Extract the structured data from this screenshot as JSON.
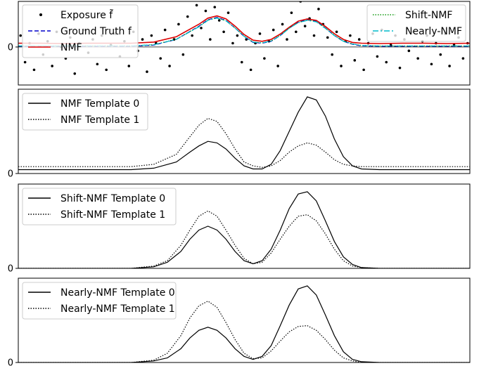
{
  "chart_data": [
    {
      "type": "line",
      "panel": "top",
      "x": [
        0,
        1000
      ],
      "xlim": [
        0,
        1000
      ],
      "ylim": [
        -1.0,
        1.2
      ],
      "yticks": [
        0
      ],
      "ytick_labels": [
        "0"
      ],
      "zero_line": true,
      "legend_left": [
        "Exposure f̃",
        "Ground Truth f",
        "NMF"
      ],
      "legend_right": [
        "Shift-NMF",
        "Nearly-NMF"
      ],
      "series": [
        {
          "name": "Exposure f̃",
          "style": "scatter",
          "color": "#000000",
          "x": [
            5,
            15,
            25,
            35,
            45,
            55,
            65,
            75,
            85,
            95,
            105,
            115,
            125,
            135,
            145,
            155,
            165,
            175,
            185,
            195,
            205,
            215,
            225,
            235,
            245,
            255,
            265,
            275,
            285,
            295,
            305,
            315,
            325,
            335,
            345,
            355,
            365,
            375,
            385,
            395,
            405,
            415,
            425,
            435,
            445,
            455,
            465,
            475,
            485,
            495,
            505,
            515,
            525,
            535,
            545,
            555,
            565,
            575,
            585,
            595,
            605,
            615,
            625,
            635,
            645,
            655,
            665,
            675,
            685,
            695,
            705,
            715,
            725,
            735,
            745,
            755,
            765,
            775,
            785,
            795,
            805,
            815,
            825,
            835,
            845,
            855,
            865,
            875,
            885,
            895,
            905,
            915,
            925,
            935,
            945,
            955,
            965,
            975,
            985,
            995
          ],
          "y": [
            0.3,
            -0.4,
            0.1,
            -0.6,
            0.35,
            -0.2,
            0.15,
            -0.5,
            0.4,
            0.0,
            -0.3,
            0.25,
            -0.7,
            0.1,
            0.45,
            -0.15,
            0.2,
            -0.45,
            0.3,
            -0.6,
            0.05,
            0.35,
            -0.25,
            0.15,
            -0.5,
            0.4,
            -0.1,
            0.2,
            -0.65,
            0.3,
            0.1,
            -0.3,
            0.45,
            -0.5,
            0.2,
            0.6,
            -0.2,
            0.8,
            0.3,
            1.1,
            0.5,
            0.95,
            0.2,
            1.05,
            0.7,
            0.4,
            0.9,
            0.1,
            0.3,
            -0.4,
            0.2,
            -0.6,
            0.1,
            0.35,
            -0.3,
            0.15,
            0.45,
            -0.5,
            0.6,
            0.2,
            0.9,
            0.4,
            1.2,
            0.55,
            0.75,
            0.3,
            1.0,
            0.6,
            0.25,
            -0.2,
            0.4,
            -0.5,
            0.15,
            0.3,
            -0.35,
            0.2,
            -0.6,
            0.1,
            0.35,
            -0.25,
            0.45,
            -0.4,
            0.05,
            0.3,
            -0.55,
            0.2,
            -0.1,
            0.4,
            -0.3,
            0.15,
            0.3,
            -0.45,
            0.1,
            -0.2,
            0.35,
            -0.5,
            0.05,
            0.25,
            -0.3,
            0.1
          ]
        },
        {
          "name": "Ground Truth f",
          "style": "dashed",
          "color": "#0000cc",
          "x": [
            0,
            50,
            100,
            150,
            200,
            250,
            300,
            350,
            400,
            420,
            440,
            460,
            480,
            500,
            520,
            540,
            560,
            580,
            600,
            620,
            640,
            660,
            680,
            700,
            720,
            740,
            760,
            800,
            850,
            900,
            950,
            1000
          ],
          "y": [
            0.02,
            0.02,
            0.02,
            0.02,
            0.02,
            0.02,
            0.05,
            0.2,
            0.55,
            0.72,
            0.78,
            0.7,
            0.5,
            0.28,
            0.12,
            0.1,
            0.15,
            0.3,
            0.5,
            0.65,
            0.72,
            0.68,
            0.5,
            0.3,
            0.15,
            0.07,
            0.03,
            0.02,
            0.02,
            0.02,
            0.02,
            0.02
          ]
        },
        {
          "name": "NMF",
          "style": "solid",
          "color": "#dd0000",
          "x": [
            0,
            50,
            100,
            150,
            200,
            250,
            300,
            350,
            400,
            420,
            440,
            460,
            480,
            500,
            520,
            540,
            560,
            580,
            600,
            620,
            640,
            660,
            680,
            700,
            720,
            740,
            760,
            800,
            850,
            900,
            950,
            1000
          ],
          "y": [
            0.1,
            0.1,
            0.09,
            0.1,
            0.1,
            0.1,
            0.13,
            0.27,
            0.6,
            0.76,
            0.82,
            0.74,
            0.55,
            0.33,
            0.18,
            0.15,
            0.2,
            0.34,
            0.52,
            0.68,
            0.74,
            0.7,
            0.54,
            0.35,
            0.2,
            0.12,
            0.1,
            0.09,
            0.1,
            0.1,
            0.09,
            0.1
          ]
        },
        {
          "name": "Shift-NMF",
          "style": "dotted",
          "color": "#119911",
          "x": [
            0,
            50,
            100,
            150,
            200,
            250,
            300,
            350,
            400,
            420,
            440,
            460,
            480,
            500,
            520,
            540,
            560,
            580,
            600,
            620,
            640,
            660,
            680,
            700,
            720,
            740,
            760,
            800,
            850,
            900,
            950,
            1000
          ],
          "y": [
            0.03,
            0.03,
            0.03,
            0.03,
            0.03,
            0.03,
            0.06,
            0.21,
            0.54,
            0.71,
            0.77,
            0.69,
            0.5,
            0.29,
            0.13,
            0.11,
            0.16,
            0.31,
            0.5,
            0.64,
            0.71,
            0.67,
            0.5,
            0.31,
            0.16,
            0.08,
            0.04,
            0.03,
            0.03,
            0.03,
            0.03,
            0.03
          ]
        },
        {
          "name": "Nearly-NMF",
          "style": "dashdot",
          "color": "#00bbcc",
          "x": [
            0,
            50,
            100,
            150,
            200,
            250,
            300,
            350,
            400,
            420,
            440,
            460,
            480,
            500,
            520,
            540,
            560,
            580,
            600,
            620,
            640,
            660,
            680,
            700,
            720,
            740,
            760,
            800,
            850,
            900,
            950,
            1000
          ],
          "y": [
            0.03,
            0.03,
            0.03,
            0.03,
            0.03,
            0.03,
            0.06,
            0.2,
            0.53,
            0.7,
            0.76,
            0.69,
            0.5,
            0.28,
            0.13,
            0.11,
            0.16,
            0.3,
            0.49,
            0.64,
            0.7,
            0.66,
            0.49,
            0.3,
            0.15,
            0.08,
            0.04,
            0.03,
            0.03,
            0.03,
            0.03,
            0.03
          ]
        }
      ]
    },
    {
      "type": "line",
      "panel": "nmf-templates",
      "xlim": [
        0,
        1000
      ],
      "ylim": [
        0,
        1.1
      ],
      "yticks": [
        0
      ],
      "ytick_labels": [
        "0"
      ],
      "legend": [
        "NMF Template 0",
        "NMF Template 1"
      ],
      "series": [
        {
          "name": "NMF Template 0",
          "style": "solid",
          "color": "#000000",
          "x": [
            0,
            50,
            100,
            150,
            200,
            250,
            300,
            350,
            380,
            400,
            420,
            440,
            460,
            480,
            500,
            520,
            540,
            560,
            580,
            600,
            620,
            640,
            660,
            680,
            700,
            720,
            740,
            760,
            800,
            850,
            900,
            950,
            1000
          ],
          "y": [
            0.05,
            0.05,
            0.05,
            0.05,
            0.05,
            0.05,
            0.07,
            0.15,
            0.28,
            0.36,
            0.42,
            0.4,
            0.32,
            0.2,
            0.1,
            0.06,
            0.06,
            0.12,
            0.3,
            0.55,
            0.8,
            1.0,
            0.96,
            0.75,
            0.45,
            0.22,
            0.1,
            0.06,
            0.05,
            0.05,
            0.05,
            0.05,
            0.05
          ]
        },
        {
          "name": "NMF Template 1",
          "style": "dotted",
          "color": "#000000",
          "x": [
            0,
            50,
            100,
            150,
            200,
            250,
            300,
            350,
            380,
            400,
            420,
            440,
            460,
            480,
            500,
            520,
            540,
            560,
            580,
            600,
            620,
            640,
            660,
            680,
            700,
            720,
            740,
            760,
            800,
            850,
            900,
            950,
            1000
          ],
          "y": [
            0.09,
            0.09,
            0.09,
            0.09,
            0.09,
            0.09,
            0.12,
            0.25,
            0.48,
            0.63,
            0.72,
            0.68,
            0.52,
            0.32,
            0.15,
            0.1,
            0.08,
            0.1,
            0.17,
            0.28,
            0.36,
            0.4,
            0.37,
            0.28,
            0.18,
            0.12,
            0.1,
            0.09,
            0.09,
            0.09,
            0.09,
            0.09,
            0.09
          ]
        }
      ]
    },
    {
      "type": "line",
      "panel": "shift-nmf-templates",
      "xlim": [
        0,
        1000
      ],
      "ylim": [
        0,
        1.1
      ],
      "yticks": [
        0
      ],
      "ytick_labels": [
        "0"
      ],
      "legend": [
        "Shift-NMF Template 0",
        "Shift-NMF Template 1"
      ],
      "series": [
        {
          "name": "Shift-NMF Template 0",
          "style": "solid",
          "color": "#000000",
          "x": [
            0,
            50,
            100,
            150,
            200,
            250,
            300,
            330,
            360,
            380,
            400,
            420,
            440,
            460,
            480,
            500,
            520,
            540,
            560,
            580,
            600,
            620,
            640,
            660,
            680,
            700,
            720,
            740,
            760,
            800,
            850,
            900,
            950,
            1000
          ],
          "y": [
            0.0,
            0.0,
            0.0,
            0.0,
            0.0,
            0.0,
            0.02,
            0.08,
            0.22,
            0.38,
            0.5,
            0.55,
            0.5,
            0.38,
            0.22,
            0.1,
            0.06,
            0.1,
            0.25,
            0.5,
            0.78,
            0.97,
            1.0,
            0.88,
            0.62,
            0.35,
            0.15,
            0.05,
            0.01,
            0.0,
            0.0,
            0.0,
            0.0,
            0.0
          ]
        },
        {
          "name": "Shift-NMF Template 1",
          "style": "dotted",
          "color": "#000000",
          "x": [
            0,
            50,
            100,
            150,
            200,
            250,
            300,
            330,
            360,
            380,
            400,
            420,
            440,
            460,
            480,
            500,
            520,
            540,
            560,
            580,
            600,
            620,
            640,
            660,
            680,
            700,
            720,
            740,
            760,
            800,
            850,
            900,
            950,
            1000
          ],
          "y": [
            0.0,
            0.0,
            0.0,
            0.0,
            0.0,
            0.0,
            0.03,
            0.1,
            0.3,
            0.5,
            0.68,
            0.75,
            0.68,
            0.5,
            0.3,
            0.13,
            0.06,
            0.08,
            0.2,
            0.38,
            0.55,
            0.68,
            0.7,
            0.62,
            0.45,
            0.25,
            0.1,
            0.03,
            0.01,
            0.0,
            0.0,
            0.0,
            0.0,
            0.0
          ]
        }
      ]
    },
    {
      "type": "line",
      "panel": "nearly-nmf-templates",
      "xlim": [
        0,
        1000
      ],
      "ylim": [
        0,
        1.1
      ],
      "yticks": [
        0
      ],
      "ytick_labels": [
        "0"
      ],
      "legend": [
        "Nearly-NMF Template 0",
        "Nearly-NMF Template 1"
      ],
      "series": [
        {
          "name": "Nearly-NMF Template 0",
          "style": "solid",
          "color": "#000000",
          "x": [
            0,
            50,
            100,
            150,
            200,
            250,
            300,
            330,
            360,
            380,
            400,
            420,
            440,
            460,
            480,
            500,
            520,
            540,
            560,
            580,
            600,
            620,
            640,
            660,
            680,
            700,
            720,
            740,
            760,
            800,
            850,
            900,
            950,
            1000
          ],
          "y": [
            0.0,
            0.0,
            0.0,
            0.0,
            0.0,
            0.0,
            0.02,
            0.06,
            0.18,
            0.32,
            0.42,
            0.46,
            0.42,
            0.32,
            0.18,
            0.08,
            0.04,
            0.08,
            0.22,
            0.48,
            0.75,
            0.96,
            1.0,
            0.88,
            0.62,
            0.35,
            0.14,
            0.04,
            0.01,
            0.0,
            0.0,
            0.0,
            0.0,
            0.0
          ]
        },
        {
          "name": "Nearly-NMF Template 1",
          "style": "dotted",
          "color": "#000000",
          "x": [
            0,
            50,
            100,
            150,
            200,
            250,
            300,
            330,
            360,
            380,
            400,
            420,
            440,
            460,
            480,
            500,
            520,
            540,
            560,
            580,
            600,
            620,
            640,
            660,
            680,
            700,
            720,
            740,
            760,
            800,
            850,
            900,
            950,
            1000
          ],
          "y": [
            0.0,
            0.0,
            0.0,
            0.0,
            0.0,
            0.0,
            0.03,
            0.12,
            0.35,
            0.58,
            0.74,
            0.8,
            0.72,
            0.52,
            0.3,
            0.12,
            0.05,
            0.06,
            0.15,
            0.28,
            0.4,
            0.47,
            0.48,
            0.42,
            0.3,
            0.16,
            0.06,
            0.02,
            0.0,
            0.0,
            0.0,
            0.0,
            0.0,
            0.0
          ]
        }
      ]
    }
  ]
}
